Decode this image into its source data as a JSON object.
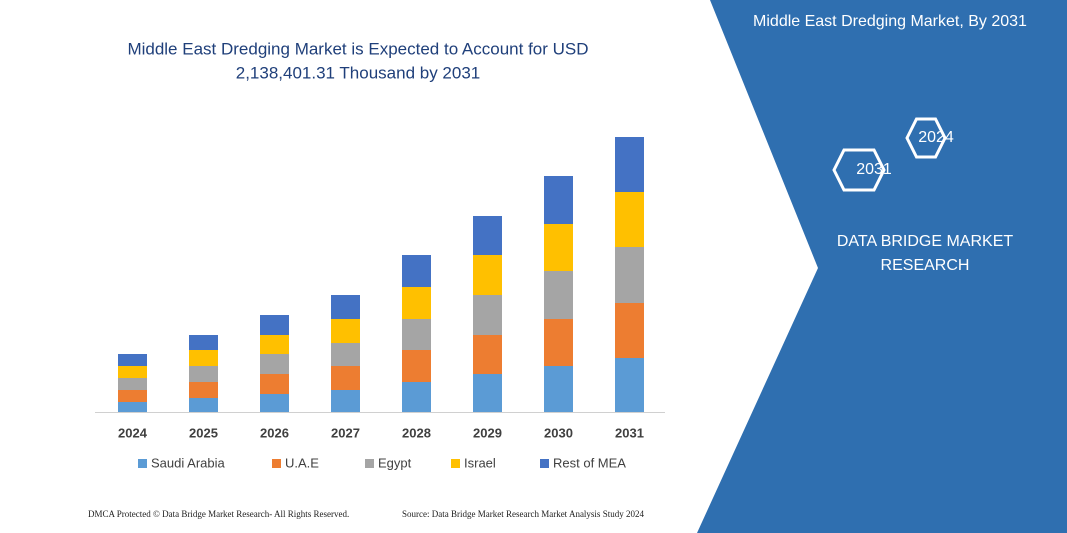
{
  "chart_data": {
    "type": "bar",
    "stacked": true,
    "title": [
      "Middle East Dredging Market is Expected to Account for USD",
      "2,138,401.31 Thousand by 2031"
    ],
    "categories": [
      "2024",
      "2025",
      "2026",
      "2027",
      "2028",
      "2029",
      "2030",
      "2031"
    ],
    "series": [
      {
        "name": "Saudi Arabia",
        "color": "#5b9bd5",
        "values": [
          10,
          14,
          18,
          22,
          30,
          38,
          46,
          54
        ]
      },
      {
        "name": "U.A.E",
        "color": "#ed7d31",
        "values": [
          12,
          16,
          20,
          24,
          32,
          39,
          47,
          55
        ]
      },
      {
        "name": "Egypt",
        "color": "#a5a5a5",
        "values": [
          12,
          16,
          20,
          23,
          31,
          40,
          48,
          56
        ]
      },
      {
        "name": "Israel",
        "color": "#ffc000",
        "values": [
          12,
          16,
          19,
          24,
          32,
          40,
          47,
          55
        ]
      },
      {
        "name": "Rest of MEA",
        "color": "#4472c4",
        "values": [
          12,
          15,
          20,
          24,
          32,
          39,
          48,
          55
        ]
      }
    ]
  },
  "side_panel": {
    "title": "Middle East Dredging Market, By 2031",
    "badges": [
      "2024",
      "2031"
    ],
    "brand": [
      "DATA BRIDGE MARKET",
      "RESEARCH"
    ]
  },
  "footer": {
    "left": "DMCA Protected © Data Bridge Market Research- All Rights Reserved.",
    "right": "Source: Data Bridge Market Research Market Analysis Study 2024"
  }
}
